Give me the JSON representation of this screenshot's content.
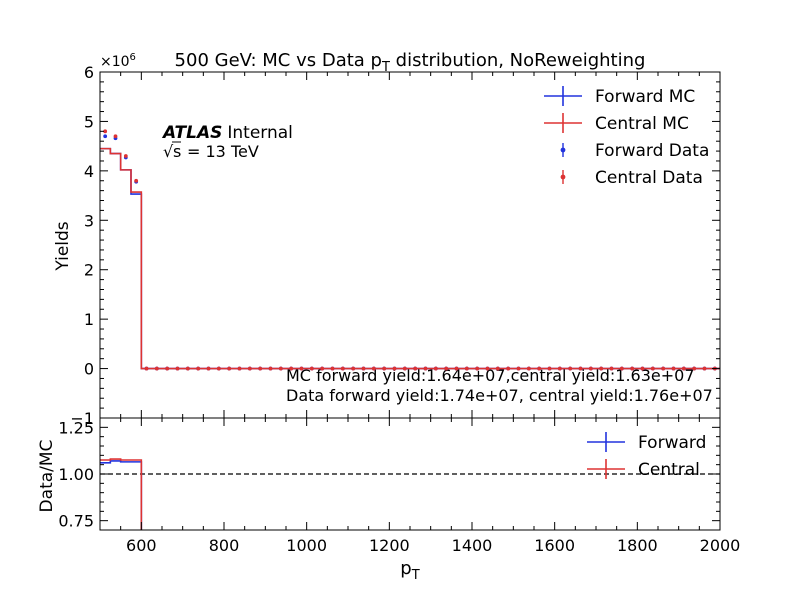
{
  "chart_data": [
    {
      "panel": "main",
      "type": "line",
      "title_main": "500 GeV: MC vs Data p",
      "title_sub": "T",
      "title_rest": " distribution, NoReweighting",
      "ylabel": "Yields",
      "y_multiplier_base": "×10",
      "y_multiplier_exp": "6",
      "ylim": [
        -1,
        6
      ],
      "xlim": [
        500,
        2000
      ],
      "y_tick_labels": [
        "−1",
        "0",
        "1",
        "2",
        "3",
        "4",
        "5",
        "6"
      ],
      "y_tick_values": [
        -1,
        0,
        1,
        2,
        3,
        4,
        5,
        6
      ],
      "atlas_label": "ATLAS",
      "atlas_status": "Internal",
      "energy_label": "= 13 TeV",
      "energy_symbol": "s",
      "annotation_mc": "MC forward yield:1.64e+07,central yield:1.63e+07",
      "annotation_data": "Data forward yield:1.74e+07, central yield:1.76e+07",
      "legend_position": "top-right",
      "bin_edges": [
        500,
        525,
        550,
        575,
        600,
        625,
        650,
        675,
        700,
        725,
        750,
        775,
        800,
        825,
        850,
        875,
        900,
        925,
        950,
        975,
        1000,
        1025,
        1050,
        1075,
        1100,
        1125,
        1150,
        1175,
        1200,
        1225,
        1250,
        1275,
        1300,
        1325,
        1350,
        1375,
        1400,
        1425,
        1450,
        1475,
        1500,
        1525,
        1550,
        1575,
        1600,
        1625,
        1650,
        1675,
        1700,
        1725,
        1750,
        1775,
        1800,
        1825,
        1850,
        1875,
        1900,
        1925,
        1950,
        1975,
        2000
      ],
      "series": [
        {
          "name": "Forward MC",
          "kind": "step",
          "color": "#2233dd",
          "values_head": [
            4.45,
            4.35,
            4.02,
            3.53
          ],
          "tail_value": 0.0
        },
        {
          "name": "Central MC",
          "kind": "step",
          "color": "#dd3333",
          "values_head": [
            4.45,
            4.35,
            4.02,
            3.57
          ],
          "tail_value": 0.0
        },
        {
          "name": "Forward Data",
          "kind": "points",
          "color": "#2233dd",
          "values_head": [
            4.7,
            4.66,
            4.27,
            3.78
          ],
          "tail_value": 0.0
        },
        {
          "name": "Central Data",
          "kind": "points",
          "color": "#dd3333",
          "values_head": [
            4.8,
            4.7,
            4.3,
            3.8
          ],
          "tail_value": 0.0
        }
      ]
    },
    {
      "panel": "ratio",
      "type": "line",
      "ylabel": "Data/MC",
      "xlabel_main": "p",
      "xlabel_sub": "T",
      "ylim": [
        0.7,
        1.3
      ],
      "xlim": [
        500,
        2000
      ],
      "y_tick_labels": [
        "0.75",
        "1.00",
        "1.25"
      ],
      "y_tick_values": [
        0.75,
        1.0,
        1.25
      ],
      "x_tick_labels": [
        "600",
        "800",
        "1000",
        "1200",
        "1400",
        "1600",
        "1800",
        "2000"
      ],
      "x_tick_values": [
        600,
        800,
        1000,
        1200,
        1400,
        1600,
        1800,
        2000
      ],
      "reference_line": 1.0,
      "legend_position": "top-right",
      "series": [
        {
          "name": "Forward",
          "kind": "step",
          "color": "#2233dd",
          "values_head": [
            1.06,
            1.07,
            1.065,
            1.065
          ]
        },
        {
          "name": "Central",
          "kind": "step",
          "color": "#dd3333",
          "values_head": [
            1.075,
            1.08,
            1.075,
            1.075
          ]
        }
      ]
    }
  ]
}
